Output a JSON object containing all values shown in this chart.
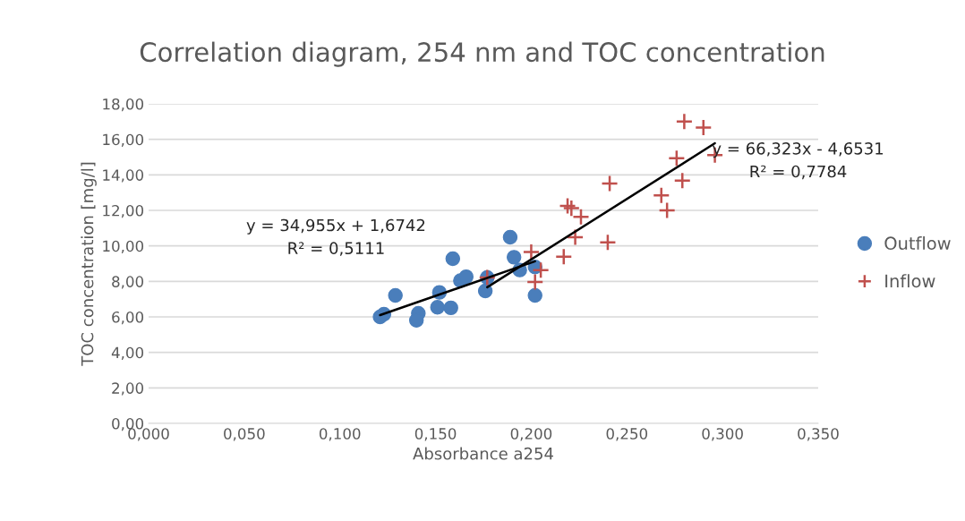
{
  "chart_data": {
    "type": "scatter",
    "title": "Correlation diagram, 254 nm and TOC concentration",
    "xlabel": "Absorbance a254",
    "ylabel": "TOC concentration [mg/l]",
    "series": [
      {
        "name": "Outflow",
        "color": "#4a7ebb",
        "marker": "circle",
        "x": [
          0.121,
          0.123,
          0.129,
          0.141,
          0.14,
          0.152,
          0.151,
          0.158,
          0.159,
          0.163,
          0.166,
          0.176,
          0.177,
          0.189,
          0.191,
          0.194,
          0.202,
          0.202
        ],
        "values": [
          6.0,
          6.15,
          7.21,
          6.2,
          5.81,
          7.38,
          6.54,
          6.51,
          9.28,
          8.04,
          8.26,
          7.46,
          8.22,
          10.49,
          9.36,
          8.64,
          8.81,
          7.21
        ]
      },
      {
        "name": "Inflow",
        "color": "#c0504d",
        "marker": "cross",
        "x": [
          0.28,
          0.29,
          0.296,
          0.276,
          0.279,
          0.241,
          0.268,
          0.271,
          0.219,
          0.221,
          0.226,
          0.223,
          0.24,
          0.217,
          0.2,
          0.205,
          0.202,
          0.177
        ],
        "values": [
          17.01,
          16.66,
          15.11,
          14.94,
          13.68,
          13.51,
          12.84,
          12.0,
          12.25,
          12.12,
          11.63,
          10.49,
          10.2,
          9.39,
          9.65,
          8.64,
          7.97,
          8.22
        ]
      },
      {
        "type": "line",
        "color": "#000000",
        "x": [
          0.121,
          0.202
        ],
        "values": [
          6.1,
          9.13
        ]
      },
      {
        "type": "line",
        "color": "#000000",
        "x": [
          0.177,
          0.296
        ],
        "values": [
          7.67,
          15.78
        ]
      }
    ],
    "annotations": [
      "y = 34,955x + 1,6742\nR² = 0,5111",
      "y = 66,323x - 4,6531\nR² = 0,7784"
    ],
    "xlim": [
      0,
      0.35
    ],
    "xticks": [
      {
        "value": 0,
        "label": "0,000"
      },
      {
        "value": 0.05,
        "label": "0,050"
      },
      {
        "value": 0.1,
        "label": "0,100"
      },
      {
        "value": 0.15,
        "label": "0,150"
      },
      {
        "value": 0.2,
        "label": "0,200"
      },
      {
        "value": 0.25,
        "label": "0,250"
      },
      {
        "value": 0.3,
        "label": "0,300"
      },
      {
        "value": 0.35,
        "label": "0,350"
      }
    ],
    "ylim": [
      0,
      18
    ],
    "yticks": [
      {
        "value": 0,
        "label": "0,00"
      },
      {
        "value": 2,
        "label": "2,00"
      },
      {
        "value": 4,
        "label": "4,00"
      },
      {
        "value": 6,
        "label": "6,00"
      },
      {
        "value": 8,
        "label": "8,00"
      },
      {
        "value": 10,
        "label": "10,00"
      },
      {
        "value": 12,
        "label": "12,00"
      },
      {
        "value": 14,
        "label": "14,00"
      },
      {
        "value": 16,
        "label": "16,00"
      },
      {
        "value": 18,
        "label": "18,00"
      }
    ],
    "grid": "y",
    "legend": "right"
  }
}
